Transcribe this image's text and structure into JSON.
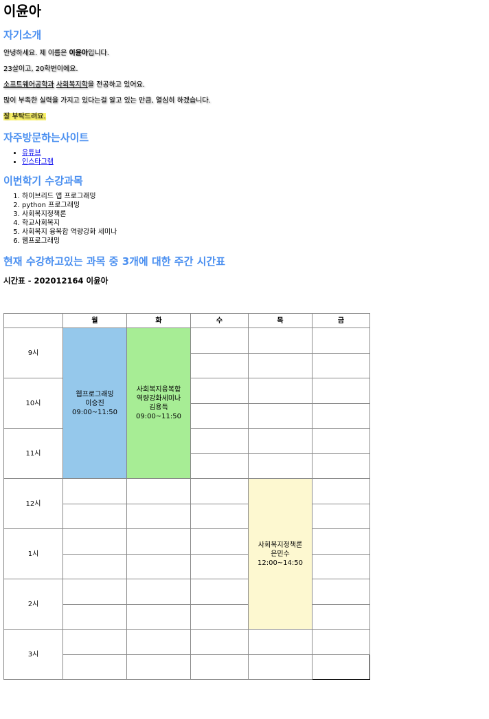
{
  "name": "이윤아",
  "sections": {
    "intro": "자기소개",
    "sites": "자주방문하는사이트",
    "courses": "이번학기 수강과목",
    "schedule": "현재 수강하고있는 과목 중 3개에 대한 주간 시간표"
  },
  "intro": {
    "line1_pre": "안녕하세요. 제 이름은 ",
    "line1_bold": "이윤아",
    "line1_post": "입니다.",
    "line2": "23살이고, 20학번이에요.",
    "line3_u1": "소프트웨어공학과",
    "line3_mid": " ",
    "line3_u2": "사회복지학",
    "line3_post": "을 전공하고 있어요.",
    "line4": "많이 부족한 실력을 가지고 있다는걸 알고 있는 만큼, 열심히 하겠습니다.",
    "line5": "잘 부탁드려요."
  },
  "links": [
    "유튜브",
    "인스타그램"
  ],
  "courses": [
    "하이브리드 앱 프로그래밍",
    "python 프로그래밍",
    "사회복지정책론",
    "학교사회복지",
    "사회복지 융복합 역량강화 세미나",
    "웹프로그래밍"
  ],
  "timetable": {
    "caption": "시간표 - 202012164 이윤아",
    "days": [
      "",
      "월",
      "화",
      "수",
      "목",
      "금"
    ],
    "hours": [
      "9시",
      "10시",
      "11시",
      "12시",
      "1시",
      "2시",
      "3시"
    ],
    "classes": {
      "web": {
        "title": "웹프로그래밍",
        "teacher": "이승진",
        "time": "09:00~11:50",
        "color": "#95c8eb"
      },
      "seminar": {
        "title": "사회복지융복합 역량강화세미나",
        "teacher": "김용득",
        "time": "09:00~11:50",
        "color": "#a7ed95"
      },
      "policy": {
        "title": "사회복지정책론",
        "teacher": "은민수",
        "time": "12:00~14:50",
        "color": "#fdf8d0"
      }
    }
  },
  "colors": {
    "section_heading": "#4a8ff0",
    "highlight": "#faf26a",
    "link": "#0000ee"
  }
}
